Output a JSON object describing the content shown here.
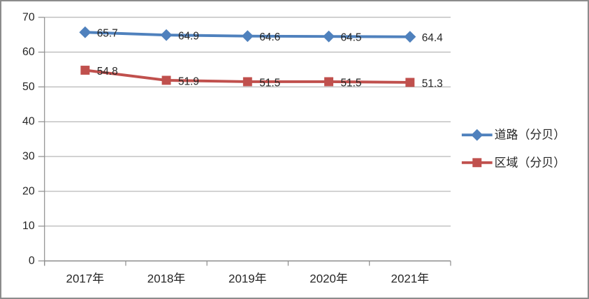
{
  "chart_data": {
    "type": "line",
    "categories": [
      "2017年",
      "2018年",
      "2019年",
      "2020年",
      "2021年"
    ],
    "series": [
      {
        "name": "道路（分贝）",
        "values": [
          65.7,
          64.9,
          64.6,
          64.5,
          64.4
        ],
        "labels": [
          "65.7",
          "64.9",
          "64.6",
          "64.5",
          "64.4"
        ],
        "color": "#4F81BD",
        "marker": "diamond"
      },
      {
        "name": "区域（分贝）",
        "values": [
          54.8,
          51.9,
          51.5,
          51.5,
          51.3
        ],
        "labels": [
          "54.8",
          "51.9",
          "51.5",
          "51.5",
          "51.3"
        ],
        "color": "#C0504D",
        "marker": "square"
      }
    ],
    "title": "",
    "xlabel": "",
    "ylabel": "",
    "ylim": [
      0,
      70
    ],
    "yticks": [
      0,
      10,
      20,
      30,
      40,
      50,
      60,
      70
    ],
    "ytick_labels": [
      "0",
      "10",
      "20",
      "30",
      "40",
      "50",
      "60",
      "70"
    ],
    "grid": true,
    "legend_position": "right",
    "data_labels_visible": true
  },
  "colors": {
    "grid": "#a6a6a6",
    "axis": "#8c8c8c",
    "tick_text": "#262626",
    "data_label_text": "#1a1a1a",
    "chart_border": "#8c8c8c",
    "background": "#ffffff"
  }
}
